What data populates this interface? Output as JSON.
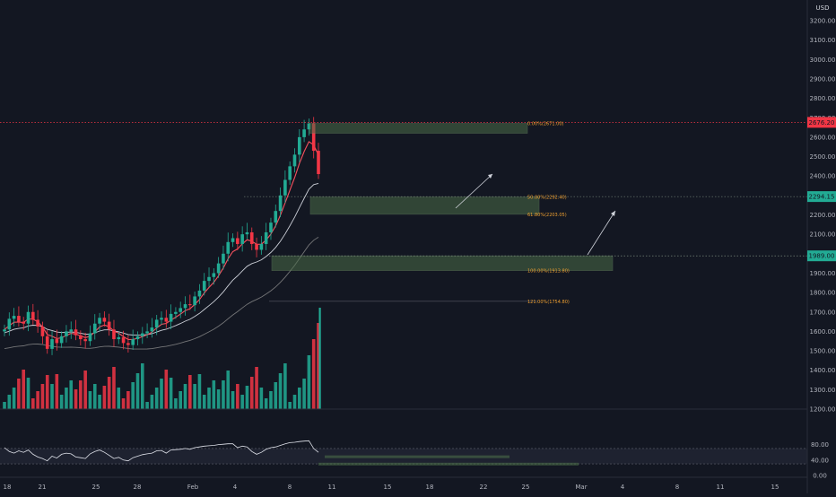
{
  "chart_data": [
    {
      "type": "candlestick",
      "currency_label": "USD",
      "y_ticks": [
        1200,
        1300,
        1400,
        1500,
        1600,
        1700,
        1800,
        1900,
        2000,
        2100,
        2200,
        2300,
        2400,
        2500,
        2600,
        2700,
        2800,
        2900,
        3000,
        3100,
        3200
      ],
      "x_ticks": [
        "18",
        "21",
        "25",
        "28",
        "Feb",
        "4",
        "8",
        "11",
        "15",
        "18",
        "22",
        "25",
        "Mar",
        "4",
        "8",
        "11",
        "15"
      ],
      "price_labels": [
        {
          "text": "2676.20",
          "value": 2676.2,
          "color": "#f23645"
        },
        {
          "text": "2294.15",
          "value": 2294.15,
          "color": "#22ab94"
        },
        {
          "text": "1989.00",
          "value": 1989.0,
          "color": "#22ab94"
        }
      ],
      "fib_labels": [
        {
          "text": "0.00%(2671.00)",
          "value": 2671.0
        },
        {
          "text": "50.00%(2292.40)",
          "value": 2292.4
        },
        {
          "text": "61.80%(2203.05)",
          "value": 2203.05
        },
        {
          "text": "100.00%(1913.80)",
          "value": 1913.8
        },
        {
          "text": "121.00%(1754.80)",
          "value": 1754.8
        }
      ],
      "zones": [
        {
          "name": "top-zone",
          "low": 2620,
          "high": 2671
        },
        {
          "name": "middle-zone",
          "low": 2203,
          "high": 2292
        },
        {
          "name": "lower-zone",
          "low": 1913,
          "high": 1989
        }
      ],
      "close_series": [
        1610,
        1665,
        1680,
        1650,
        1640,
        1700,
        1660,
        1625,
        1575,
        1510,
        1560,
        1540,
        1575,
        1600,
        1610,
        1580,
        1560,
        1550,
        1590,
        1640,
        1670,
        1650,
        1610,
        1560,
        1570,
        1540,
        1530,
        1560,
        1575,
        1590,
        1600,
        1620,
        1660,
        1670,
        1650,
        1690,
        1700,
        1720,
        1740,
        1735,
        1780,
        1810,
        1860,
        1880,
        1900,
        1950,
        2000,
        2060,
        2080,
        2050,
        2100,
        2110,
        2050,
        2020,
        2050,
        2110,
        2160,
        2220,
        2300,
        2380,
        2450,
        2510,
        2600,
        2640,
        2671,
        2530,
        2410
      ]
    },
    {
      "type": "line",
      "y_ticks": [
        0.0,
        40.0,
        80.0
      ],
      "rsi_series": [
        72,
        62,
        58,
        64,
        60,
        66,
        55,
        48,
        44,
        38,
        50,
        45,
        55,
        58,
        56,
        48,
        46,
        44,
        56,
        62,
        66,
        60,
        52,
        44,
        47,
        40,
        38,
        46,
        50,
        54,
        56,
        58,
        64,
        65,
        58,
        66,
        67,
        68,
        70,
        68,
        72,
        74,
        76,
        77,
        78,
        80,
        81,
        82,
        82,
        72,
        76,
        74,
        62,
        55,
        60,
        68,
        72,
        74,
        78,
        82,
        85,
        86,
        88,
        89,
        90,
        70,
        60
      ],
      "zones": [
        {
          "name": "rsi-zone-upper",
          "low": 45,
          "high": 52
        },
        {
          "name": "rsi-zone-lower",
          "low": 26,
          "high": 33
        }
      ]
    }
  ]
}
